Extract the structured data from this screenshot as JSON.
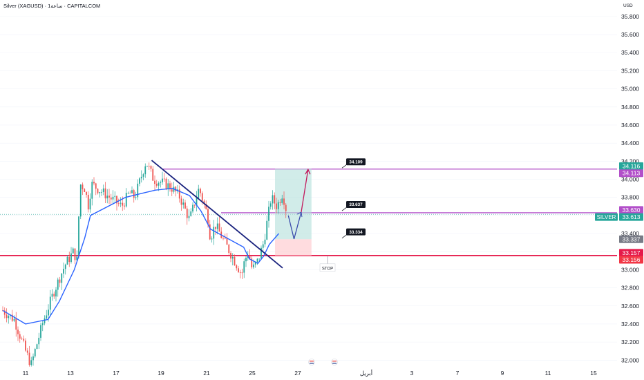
{
  "header": {
    "symbol_line": "Silver (XAGUSD) · 1ساعة · CAPITALCOM",
    "currency": "USD"
  },
  "chart_data": {
    "type": "candlestick",
    "symbol": "Silver (XAGUSD)",
    "timeframe": "1ساعة",
    "broker": "CAPITALCOM",
    "currency": "USD",
    "ylim": [
      31.9,
      35.9
    ],
    "y_ticks": [
      "35.800",
      "35.600",
      "35.400",
      "35.200",
      "35.000",
      "34.800",
      "34.600",
      "34.400",
      "34.200",
      "34.000",
      "33.800",
      "33.600",
      "33.400",
      "33.200",
      "33.000",
      "32.800",
      "32.600",
      "32.400",
      "32.200",
      "32.000"
    ],
    "x_ticks": [
      "11",
      "13",
      "17",
      "19",
      "21",
      "25",
      "27",
      "أبريل",
      "3",
      "7",
      "9",
      "11",
      "15"
    ],
    "price_path": [
      [
        "2025-03-10 00:00",
        32.55
      ],
      [
        "2025-03-10 12:00",
        32.45
      ],
      [
        "2025-03-11 00:00",
        32.1
      ],
      [
        "2025-03-11 06:00",
        31.95
      ],
      [
        "2025-03-11 18:00",
        32.4
      ],
      [
        "2025-03-12 06:00",
        32.75
      ],
      [
        "2025-03-12 18:00",
        33.05
      ],
      [
        "2025-03-13 06:00",
        33.2
      ],
      [
        "2025-03-13 14:00",
        33.1
      ],
      [
        "2025-03-13 20:00",
        33.95
      ],
      [
        "2025-03-14 06:00",
        33.9
      ],
      [
        "2025-03-14 14:00",
        33.7
      ],
      [
        "2025-03-14 20:00",
        33.95
      ],
      [
        "2025-03-17 06:00",
        33.7
      ],
      [
        "2025-03-17 14:00",
        33.85
      ],
      [
        "2025-03-17 20:00",
        33.8
      ],
      [
        "2025-03-18 08:00",
        34.2
      ],
      [
        "2025-03-18 16:00",
        34.0
      ],
      [
        "2025-03-19 04:00",
        33.95
      ],
      [
        "2025-03-19 12:00",
        33.9
      ],
      [
        "2025-03-19 20:00",
        33.8
      ],
      [
        "2025-03-20 06:00",
        33.55
      ],
      [
        "2025-03-20 16:00",
        33.9
      ],
      [
        "2025-03-21 02:00",
        33.6
      ],
      [
        "2025-03-21 08:00",
        33.35
      ],
      [
        "2025-03-21 18:00",
        33.5
      ],
      [
        "2025-03-24 02:00",
        32.95
      ],
      [
        "2025-03-24 08:00",
        33.1
      ],
      [
        "2025-03-24 16:00",
        33.2
      ],
      [
        "2025-03-25 00:00",
        33.0
      ],
      [
        "2025-03-25 06:00",
        33.1
      ],
      [
        "2025-03-25 12:00",
        33.3
      ],
      [
        "2025-03-25 20:00",
        33.8
      ],
      [
        "2025-03-26 02:00",
        33.7
      ],
      [
        "2025-03-26 08:00",
        33.85
      ],
      [
        "2025-03-26 12:00",
        33.65
      ]
    ],
    "moving_average": [
      [
        "2025-03-10 00:00",
        32.55
      ],
      [
        "2025-03-11 00:00",
        32.4
      ],
      [
        "2025-03-12 00:00",
        32.45
      ],
      [
        "2025-03-12 12:00",
        32.65
      ],
      [
        "2025-03-13 08:00",
        33.0
      ],
      [
        "2025-03-14 06:00",
        33.35
      ],
      [
        "2025-03-14 18:00",
        33.6
      ],
      [
        "2025-03-17 10:00",
        33.8
      ],
      [
        "2025-03-18 06:00",
        33.85
      ],
      [
        "2025-03-18 18:00",
        33.88
      ],
      [
        "2025-03-19 12:00",
        33.9
      ],
      [
        "2025-03-20 06:00",
        33.82
      ],
      [
        "2025-03-20 18:00",
        33.65
      ],
      [
        "2025-03-21 08:00",
        33.45
      ],
      [
        "2025-03-24 06:00",
        33.25
      ],
      [
        "2025-03-24 18:00",
        33.12
      ],
      [
        "2025-03-25 06:00",
        33.07
      ],
      [
        "2025-03-25 12:00",
        33.15
      ],
      [
        "2025-03-25 18:00",
        33.28
      ],
      [
        "2025-03-26 04:00",
        33.4
      ]
    ],
    "trendline": [
      [
        "2025-03-18 14:00",
        34.21
      ],
      [
        "2025-03-26 08:00",
        33.02
      ]
    ],
    "horizontal_levels": [
      {
        "value": 34.113,
        "color": "#b24fc9"
      },
      {
        "value": 33.63,
        "color": "#b24fc9"
      },
      {
        "value": 33.157,
        "color": "#e5194a"
      }
    ],
    "position": {
      "start": "2025-03-26 00:00",
      "end": "2025-03-28 00:00",
      "entry": 33.337,
      "target": 34.116,
      "stop": 33.157
    },
    "projection": [
      [
        "2025-03-26 14:00",
        33.6
      ],
      [
        "2025-03-26 20:00",
        33.34
      ],
      [
        "2025-03-27 06:00",
        33.637
      ],
      [
        "2025-03-27 18:00",
        34.109
      ]
    ],
    "annotations": [
      {
        "text": "34.109",
        "value": 34.109
      },
      {
        "text": "33.637",
        "value": 33.637
      },
      {
        "text": "33.334",
        "value": 33.334
      },
      {
        "text": "STOP",
        "value": 33.02
      }
    ],
    "axis_labels": [
      {
        "text": "34.116",
        "value": 34.116,
        "color": "#26a69a"
      },
      {
        "text": "34.113",
        "value": 34.113,
        "color": "#b24fc9"
      },
      {
        "text": "33.630",
        "value": 33.63,
        "color": "#b24fc9"
      },
      {
        "text": "33.613",
        "value": 33.613,
        "color": "#26a69a"
      },
      {
        "text": "33.337",
        "value": 33.337,
        "color": "#787b86"
      },
      {
        "text": "33.157",
        "value": 33.157,
        "color": "#e5194a"
      },
      {
        "text": "33.156",
        "value": 33.156,
        "color": "#f23645"
      }
    ],
    "symbol_tag": "SILVER",
    "colors": {
      "up": "#26a69a",
      "down": "#ef5350",
      "ma": "#2962ff",
      "trend": "#1a237e",
      "purple": "#b24fc9",
      "red": "#e5194a"
    }
  }
}
